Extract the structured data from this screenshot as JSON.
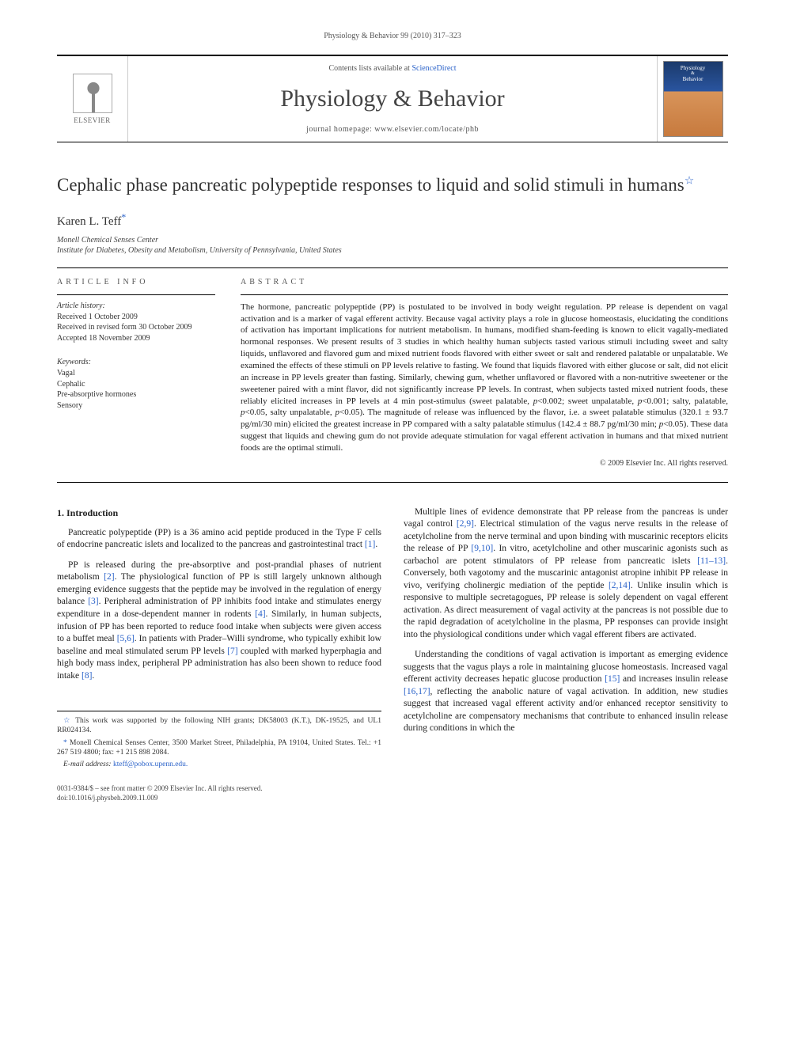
{
  "running_header": "Physiology & Behavior 99 (2010) 317–323",
  "masthead": {
    "contents_prefix": "Contents lists available at ",
    "contents_link": "ScienceDirect",
    "journal_name": "Physiology & Behavior",
    "homepage_prefix": "journal homepage: ",
    "homepage_url": "www.elsevier.com/locate/phb",
    "publisher_logo_text": "ELSEVIER",
    "cover_text_top": "Physiology",
    "cover_text_bottom": "Behavior"
  },
  "article": {
    "title": "Cephalic phase pancreatic polypeptide responses to liquid and solid stimuli in humans",
    "title_note_marker": "☆",
    "author": "Karen L. Teff",
    "author_corr_marker": "*",
    "affiliations": [
      "Monell Chemical Senses Center",
      "Institute for Diabetes, Obesity and Metabolism, University of Pennsylvania, United States"
    ]
  },
  "article_info": {
    "heading": "article info",
    "history_label": "Article history:",
    "history": [
      "Received 1 October 2009",
      "Received in revised form 30 October 2009",
      "Accepted 18 November 2009"
    ],
    "keywords_label": "Keywords:",
    "keywords": [
      "Vagal",
      "Cephalic",
      "Pre-absorptive hormones",
      "Sensory"
    ]
  },
  "abstract": {
    "heading": "abstract",
    "text": "The hormone, pancreatic polypeptide (PP) is postulated to be involved in body weight regulation. PP release is dependent on vagal activation and is a marker of vagal efferent activity. Because vagal activity plays a role in glucose homeostasis, elucidating the conditions of activation has important implications for nutrient metabolism. In humans, modified sham-feeding is known to elicit vagally-mediated hormonal responses. We present results of 3 studies in which healthy human subjects tasted various stimuli including sweet and salty liquids, unflavored and flavored gum and mixed nutrient foods flavored with either sweet or salt and rendered palatable or unpalatable. We examined the effects of these stimuli on PP levels relative to fasting. We found that liquids flavored with either glucose or salt, did not elicit an increase in PP levels greater than fasting. Similarly, chewing gum, whether unflavored or flavored with a non-nutritive sweetener or the sweetener paired with a mint flavor, did not significantly increase PP levels. In contrast, when subjects tasted mixed nutrient foods, these reliably elicited increases in PP levels at 4 min post-stimulus (sweet palatable, p<0.002; sweet unpalatable, p<0.001; salty, palatable, p<0.05, salty unpalatable, p<0.05). The magnitude of release was influenced by the flavor, i.e. a sweet palatable stimulus (320.1 ± 93.7 pg/ml/30 min) elicited the greatest increase in PP compared with a salty palatable stimulus (142.4 ± 88.7 pg/ml/30 min; p<0.05). These data suggest that liquids and chewing gum do not provide adequate stimulation for vagal efferent activation in humans and that mixed nutrient foods are the optimal stimuli.",
    "copyright": "© 2009 Elsevier Inc. All rights reserved."
  },
  "body": {
    "intro_heading": "1. Introduction",
    "left_paras": [
      "Pancreatic polypeptide (PP) is a 36 amino acid peptide produced in the Type F cells of endocrine pancreatic islets and localized to the pancreas and gastrointestinal tract [1].",
      "PP is released during the pre-absorptive and post-prandial phases of nutrient metabolism [2]. The physiological function of PP is still largely unknown although emerging evidence suggests that the peptide may be involved in the regulation of energy balance [3]. Peripheral administration of PP inhibits food intake and stimulates energy expenditure in a dose-dependent manner in rodents [4]. Similarly, in human subjects, infusion of PP has been reported to reduce food intake when subjects were given access to a buffet meal [5,6]. In patients with Prader–Willi syndrome, who typically exhibit low baseline and meal stimulated serum PP levels [7] coupled with marked hyperphagia and high body mass index, peripheral PP administration has also been shown to reduce food intake [8]."
    ],
    "right_paras": [
      "Multiple lines of evidence demonstrate that PP release from the pancreas is under vagal control [2,9]. Electrical stimulation of the vagus nerve results in the release of acetylcholine from the nerve terminal and upon binding with muscarinic receptors elicits the release of PP [9,10]. In vitro, acetylcholine and other muscarinic agonists such as carbachol are potent stimulators of PP release from pancreatic islets [11–13]. Conversely, both vagotomy and the muscarinic antagonist atropine inhibit PP release in vivo, verifying cholinergic mediation of the peptide [2,14]. Unlike insulin which is responsive to multiple secretagogues, PP release is solely dependent on vagal efferent activation. As direct measurement of vagal activity at the pancreas is not possible due to the rapid degradation of acetylcholine in the plasma, PP responses can provide insight into the physiological conditions under which vagal efferent fibers are activated.",
      "Understanding the conditions of vagal activation is important as emerging evidence suggests that the vagus plays a role in maintaining glucose homeostasis. Increased vagal efferent activity decreases hepatic glucose production [15] and increases insulin release [16,17], reflecting the anabolic nature of vagal activation. In addition, new studies suggest that increased vagal efferent activity and/or enhanced receptor sensitivity to acetylcholine are compensatory mechanisms that contribute to enhanced insulin release during conditions in which the"
    ]
  },
  "footnotes": {
    "funding_marker": "☆",
    "funding": "This work was supported by the following NIH grants; DK58003 (K.T.), DK-19525, and UL1 RR024134.",
    "corr_marker": "*",
    "corr": "Monell Chemical Senses Center, 3500 Market Street, Philadelphia, PA 19104, United States. Tel.: +1 267 519 4800; fax: +1 215 898 2084.",
    "email_label": "E-mail address:",
    "email": "kteff@pobox.upenn.edu."
  },
  "footer": {
    "line1": "0031-9384/$ – see front matter © 2009 Elsevier Inc. All rights reserved.",
    "line2": "doi:10.1016/j.physbeh.2009.11.009"
  },
  "colors": {
    "link": "#2a62c9",
    "text": "#222222",
    "rule": "#000000"
  }
}
